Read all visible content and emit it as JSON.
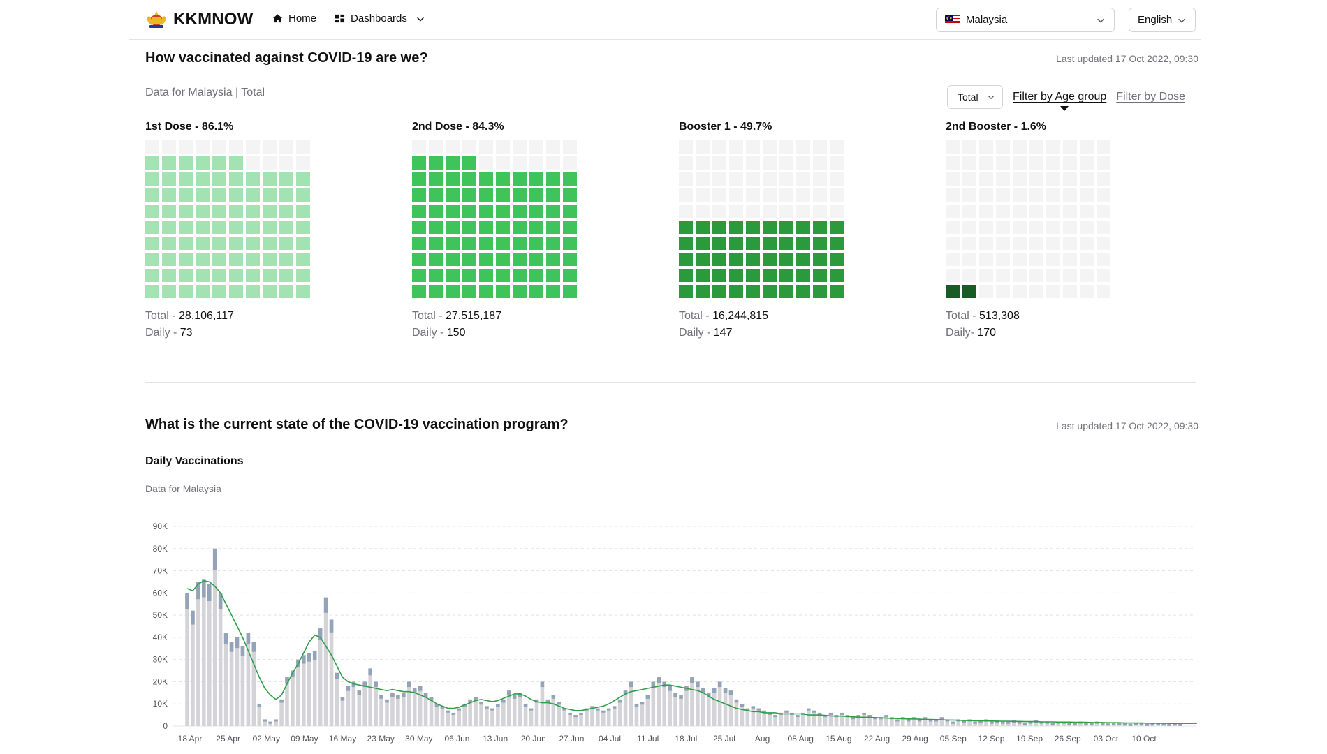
{
  "header": {
    "logo_text": "KKMNOW",
    "nav": [
      {
        "label": "Home",
        "icon": "home-icon"
      },
      {
        "label": "Dashboards",
        "icon": "dashboard-icon"
      }
    ],
    "country": "Malaysia",
    "language": "English"
  },
  "section1": {
    "title": "How vaccinated against COVID-19 are we?",
    "updated": "Last updated 17 Oct 2022, 09:30",
    "subtitle": "Data for Malaysia | Total",
    "filter_select": "Total",
    "filter_age": "Filter by Age group",
    "filter_dose": "Filter by Dose",
    "waffles": [
      {
        "title": "1st Dose - ",
        "pct_label": "86.1%",
        "pct": 86.1,
        "color": "#a3e3b3",
        "total_label": "Total - ",
        "total": "28,106,117",
        "daily_label": "Daily - ",
        "daily": "73",
        "dashed": true
      },
      {
        "title": "2nd Dose - ",
        "pct_label": "84.3%",
        "pct": 84.3,
        "color": "#3ec45a",
        "total_label": "Total - ",
        "total": "27,515,187",
        "daily_label": "Daily - ",
        "daily": "150",
        "dashed": true
      },
      {
        "title": "Booster 1 - ",
        "pct_label": "49.7%",
        "pct": 49.7,
        "color": "#2a9a3c",
        "total_label": "Total - ",
        "total": "16,244,815",
        "daily_label": "Daily - ",
        "daily": "147",
        "dashed": false
      },
      {
        "title": "2nd Booster - ",
        "pct_label": "1.6%",
        "pct": 1.6,
        "color": "#185c26",
        "total_label": "Total - ",
        "total": "513,308",
        "daily_label": "Daily- ",
        "daily": "170",
        "dashed": false
      }
    ]
  },
  "section2": {
    "title": "What is the current state of the COVID-19 vaccination program?",
    "updated": "Last updated 17 Oct 2022, 09:30",
    "chart_title": "Daily Vaccinations",
    "chart_subtitle": "Data for Malaysia"
  },
  "chart_data": {
    "type": "bar",
    "ylim": [
      0,
      90000
    ],
    "yticks": [
      0,
      10000,
      20000,
      30000,
      40000,
      50000,
      60000,
      70000,
      80000,
      90000
    ],
    "ytick_labels": [
      "0",
      "10K",
      "20K",
      "30K",
      "40K",
      "50K",
      "60K",
      "70K",
      "80K",
      "90K"
    ],
    "xtick_labels": [
      "18 Apr",
      "25 Apr",
      "02 May",
      "09 May",
      "16 May",
      "23 May",
      "30 May",
      "06 Jun",
      "13 Jun",
      "20 Jun",
      "27 Jun",
      "04 Jul",
      "11 Jul",
      "18 Jul",
      "25 Jul",
      "Aug",
      "08 Aug",
      "15 Aug",
      "22 Aug",
      "29 Aug",
      "05 Sep",
      "12 Sep",
      "19 Sep",
      "26 Sep",
      "03 Oct",
      "10 Oct"
    ],
    "bar_color": "#d4d4d8",
    "bar_top_color": "#94a3b8",
    "line_color": "#2e9e48",
    "values": [
      60000,
      52000,
      65000,
      66000,
      64000,
      80000,
      60000,
      42000,
      38000,
      40000,
      36000,
      42000,
      38000,
      10000,
      3000,
      2000,
      3000,
      12000,
      22000,
      25000,
      30000,
      32000,
      33000,
      34000,
      44000,
      58000,
      48000,
      24000,
      13000,
      18000,
      20000,
      16000,
      20000,
      26000,
      20000,
      14000,
      12000,
      15000,
      14000,
      15000,
      20000,
      17000,
      18000,
      15000,
      13000,
      10000,
      9000,
      7000,
      6000,
      8000,
      10000,
      12000,
      13000,
      11000,
      9000,
      8000,
      10000,
      12000,
      16000,
      14000,
      15000,
      10000,
      8000,
      12000,
      20000,
      12000,
      14000,
      11000,
      8000,
      6000,
      5000,
      6000,
      8000,
      9000,
      8000,
      7000,
      8000,
      9000,
      12000,
      16000,
      20000,
      10000,
      11000,
      14000,
      20000,
      22000,
      20000,
      18000,
      15000,
      14000,
      18000,
      22000,
      20000,
      17000,
      15000,
      17000,
      20000,
      17000,
      16000,
      12000,
      10000,
      8000,
      9000,
      8000,
      7000,
      6000,
      5000,
      6000,
      7000,
      6000,
      5000,
      6000,
      8000,
      7000,
      6000,
      5000,
      6000,
      5000,
      6000,
      5000,
      4000,
      5000,
      6000,
      5000,
      4000,
      4000,
      5000,
      4000,
      3000,
      4000,
      3000,
      4000,
      3000,
      4000,
      3000,
      3000,
      4000,
      3000,
      2000,
      3000,
      2500,
      3000,
      2000,
      2500,
      3000,
      2000,
      2500,
      2000,
      2000,
      2500,
      2000,
      1500,
      2000,
      2500,
      2000,
      2000,
      1500,
      2000,
      2000,
      1500,
      1500,
      2000,
      1500,
      1500,
      2000,
      1500,
      1200,
      1500,
      1500,
      1200,
      1000,
      1500,
      1200,
      1000,
      1200,
      1500,
      1200,
      1000,
      1200,
      1000
    ],
    "moving_avg": [
      62000,
      61000,
      64000,
      65500,
      65000,
      63000,
      60000,
      55000,
      50000,
      45000,
      40000,
      34000,
      28000,
      22000,
      17000,
      14000,
      12000,
      14000,
      19000,
      24000,
      28000,
      33000,
      38000,
      41000,
      40000,
      36000,
      32000,
      27000,
      22000,
      20000,
      19000,
      18500,
      18000,
      17500,
      17000,
      16500,
      16000,
      16500,
      16000,
      15500,
      15500,
      15000,
      14000,
      13000,
      11500,
      10000,
      9000,
      8000,
      8000,
      8500,
      9500,
      10500,
      11500,
      12000,
      11500,
      11000,
      11500,
      12500,
      13500,
      14500,
      14500,
      13500,
      12000,
      11000,
      10500,
      10500,
      10000,
      9000,
      8000,
      7500,
      7000,
      7000,
      7500,
      8000,
      8500,
      9000,
      10000,
      11500,
      13000,
      14500,
      15500,
      16000,
      16500,
      17000,
      17500,
      18000,
      18500,
      18500,
      18000,
      17500,
      17000,
      16500,
      16000,
      15000,
      13500,
      12000,
      11000,
      10000,
      9000,
      8000,
      7500,
      7000,
      6500,
      6500,
      6000,
      6000,
      6000,
      5500,
      5500,
      5500,
      5500,
      5500,
      5000,
      5000,
      5000,
      4800,
      4600,
      4500,
      4500,
      4300,
      4200,
      4000,
      4000,
      3900,
      3800,
      3700,
      3600,
      3500,
      3400,
      3300,
      3200,
      3200,
      3100,
      3000,
      3000,
      2900,
      2800,
      2700,
      2700,
      2600,
      2500,
      2500,
      2400,
      2400,
      2300,
      2300,
      2200,
      2200,
      2200,
      2100,
      2100,
      2000,
      2000,
      2000,
      1900,
      1900,
      1900,
      1800,
      1800,
      1800,
      1700,
      1700,
      1700,
      1600,
      1600,
      1600,
      1500,
      1500,
      1500,
      1400,
      1400,
      1400,
      1400,
      1300,
      1300,
      1300,
      1300,
      1200,
      1200,
      1200,
      1200,
      1200,
      1200
    ]
  }
}
